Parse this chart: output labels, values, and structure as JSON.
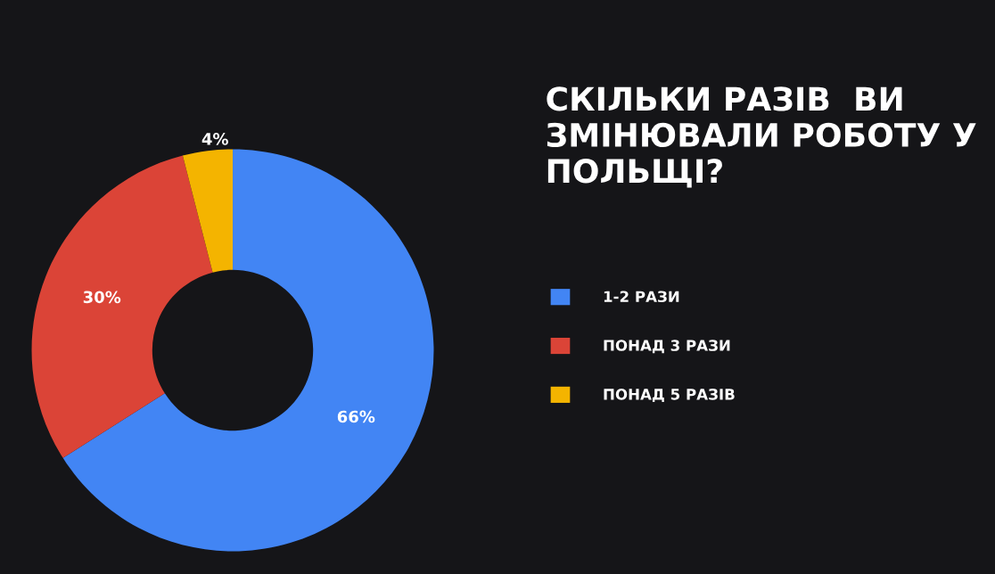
{
  "chart_data": {
    "type": "donut",
    "title": "СКІЛЬКИ РАЗІВ  ВИ ЗМІНЮВАЛИ РОБОТУ У ПОЛЬЩІ?",
    "categories": [
      "1-2 РАЗИ",
      "ПОНАД 3 РАЗИ",
      "ПОНАД 5 РАЗІВ"
    ],
    "values": [
      66,
      30,
      4
    ],
    "colors": [
      "#4285f4",
      "#db4437",
      "#f4b400"
    ],
    "value_labels": [
      "66%",
      "30%",
      "4%"
    ],
    "legend": "right"
  }
}
